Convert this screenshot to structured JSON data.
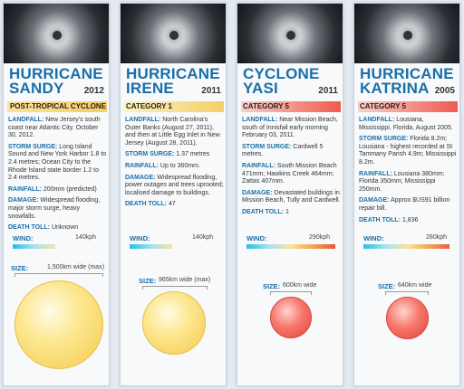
{
  "cards": [
    {
      "name": "HURRICANE SANDY",
      "year": "2012",
      "category": "POST-TROPICAL CYCLONE",
      "landfall_label": "LANDFALL:",
      "landfall": "New Jersey's south coast near Atlantic City. October 30, 2012.",
      "storm_surge_label": "STORM SURGE:",
      "storm_surge": "Long Island Sound and New York Harbor 1.8 to 2.4 metres; Ocean City to the Rhode Island state border 1.2 to 2.4 metres.",
      "rainfall_label": "RAINFALL:",
      "rainfall": "200mm (predicted)",
      "damage_label": "DAMAGE:",
      "damage": "Widespread flooding, major storm surge, heavy snowfalls.",
      "death_toll_label": "DEATH TOLL:",
      "death_toll": "Unknown",
      "wind_label": "WIND:",
      "wind": "140kph",
      "wind_level": 0.48,
      "size_label": "SIZE:",
      "size": "1,500km wide (max)",
      "circle_color": "#f4ca4e"
    },
    {
      "name": "HURRICANE IRENE",
      "year": "2011",
      "category": "CATEGORY 1",
      "landfall_label": "LANDFALL:",
      "landfall": "North Carolina's Outer Banks (August 27, 2011), and then at Little Egg Inlet in New Jersey (August 28, 2011).",
      "storm_surge_label": "STORM SURGE:",
      "storm_surge": "1.37 metres",
      "rainfall_label": "RAINFALL:",
      "rainfall": "Up to 360mm.",
      "damage_label": "DAMAGE:",
      "damage": "Widespread flooding, power outages and trees uprooted; localised damage to buildings.",
      "death_toll_label": "DEATH TOLL:",
      "death_toll": "47",
      "wind_label": "WIND:",
      "wind": "140kph",
      "wind_level": 0.48,
      "size_label": "SIZE:",
      "size": "965km wide (max)",
      "circle_color": "#f4ca4e"
    },
    {
      "name": "CYCLONE YASI",
      "year": "2011",
      "category": "CATEGORY 5",
      "landfall_label": "LANDFALL:",
      "landfall": "Near Mission Beach, south of Innisfail early morning February 03, 2011.",
      "storm_surge_label": "STORM SURGE:",
      "storm_surge": "Cardwell 5 metres.",
      "rainfall_label": "RAINFALL:",
      "rainfall": "South Mission Beach 471mm; Hawkins Creek 464mm; Zattas 407mm.",
      "damage_label": "DAMAGE:",
      "damage": "Devastated buildings in Mission Beach, Tully and Cardwell.",
      "death_toll_label": "DEATH TOLL:",
      "death_toll": "1",
      "wind_label": "WIND:",
      "wind": "290kph",
      "wind_level": 1.0,
      "size_label": "SIZE:",
      "size": "600km wide",
      "circle_color": "#e0463d"
    },
    {
      "name": "HURRICANE KATRINA",
      "year": "2005",
      "category": "CATEGORY 5",
      "landfall_label": "LANDFALL:",
      "landfall": "Lousiana, Mississippi, Florida, August 2005.",
      "storm_surge_label": "STORM SURGE:",
      "storm_surge": "Florida 8.2m; Lousiana - highest recorded at St Tammany Parish 4.9m; Mississippi 8.2m.",
      "rainfall_label": "RAINFALL:",
      "rainfall": "Lousiana 380mm; Florida 350mm; Mississippi 250mm.",
      "damage_label": "DAMAGE:",
      "damage": "Approx $US91 billion repair bill.",
      "death_toll_label": "DEATH TOLL:",
      "death_toll": "1,836",
      "wind_label": "WIND:",
      "wind": "280kph",
      "wind_level": 0.97,
      "size_label": "SIZE:",
      "size": "640km wide",
      "circle_color": "#e0463d"
    }
  ]
}
